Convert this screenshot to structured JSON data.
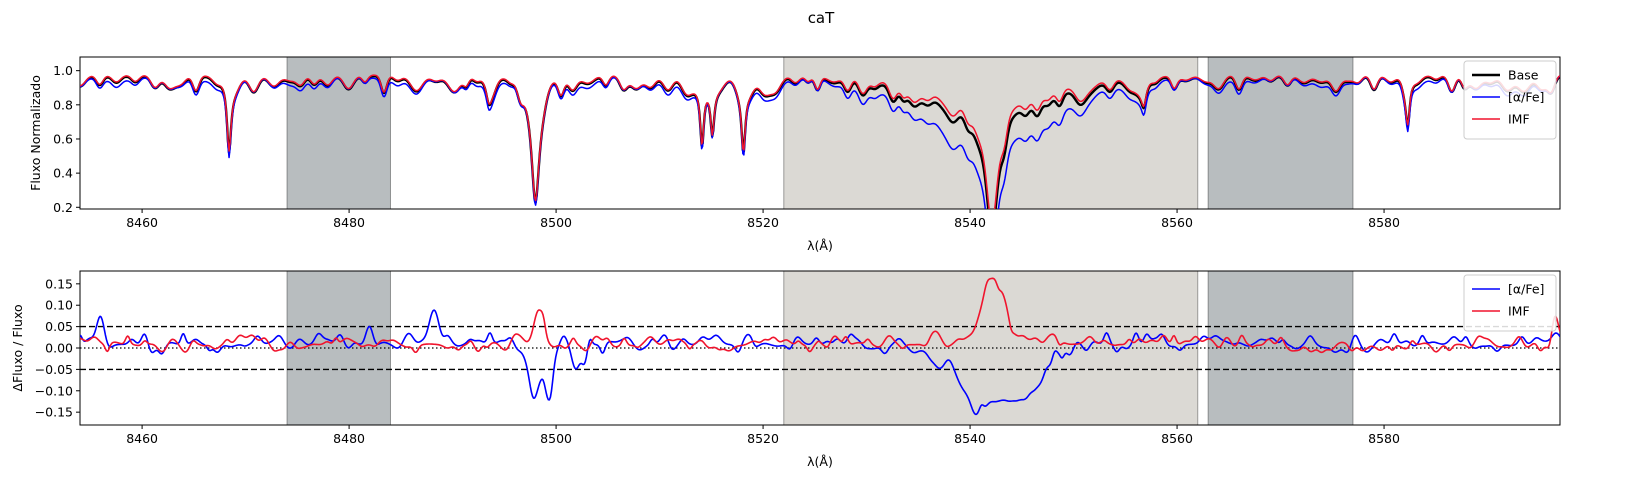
{
  "figure": {
    "title": "caT",
    "colors": {
      "Base": "#000000",
      "alpha_fe": "#0000ff",
      "IMF": "#f0142d",
      "side_band": "#7d868b",
      "central_band": "#bdbab0"
    }
  },
  "chart_data": [
    {
      "type": "line",
      "title": "",
      "xlabel": "λ(Å)",
      "ylabel": "Fluxo Normalizado",
      "xlim": [
        8454,
        8597
      ],
      "ylim": [
        0.19,
        1.08
      ],
      "xticks": [
        8460,
        8480,
        8500,
        8520,
        8540,
        8560,
        8580
      ],
      "xtick_labels": [
        "8460",
        "8480",
        "8500",
        "8520",
        "8540",
        "8560",
        "8580"
      ],
      "yticks": [
        0.2,
        0.4,
        0.6,
        0.8,
        1.0
      ],
      "ytick_labels": [
        "0.2",
        "0.4",
        "0.6",
        "0.8",
        "1.0"
      ],
      "legend": {
        "placement": "top-right",
        "entries": [
          {
            "label": "Base",
            "series": "Base"
          },
          {
            "label": "[α/Fe]",
            "series": "alpha_fe"
          },
          {
            "label": "IMF",
            "series": "IMF"
          }
        ]
      },
      "bands": [
        {
          "kind": "side",
          "x0": 8474,
          "x1": 8484
        },
        {
          "kind": "central",
          "x0": 8522,
          "x1": 8562
        },
        {
          "kind": "side",
          "x0": 8563,
          "x1": 8577
        }
      ],
      "continuum_level": 0.97,
      "absorption_lines": [
        {
          "center": 8468.4,
          "depth": 0.41,
          "width": 0.25
        },
        {
          "center": 8498.0,
          "depth": 0.63,
          "width": 0.45
        },
        {
          "center": 8542.1,
          "depth": 0.71,
          "width": 0.75
        },
        {
          "center": 8514.1,
          "depth": 0.35,
          "width": 0.22
        },
        {
          "center": 8515.1,
          "depth": 0.27,
          "width": 0.22
        },
        {
          "center": 8518.1,
          "depth": 0.35,
          "width": 0.22
        },
        {
          "center": 8582.3,
          "depth": 0.26,
          "width": 0.25
        },
        {
          "center": 8493.5,
          "depth": 0.1,
          "width": 0.35
        },
        {
          "center": 8556.8,
          "depth": 0.12,
          "width": 0.3
        }
      ],
      "wing_depression": {
        "center": 8542.0,
        "depth": 0.38,
        "width": 6.5
      },
      "series": [
        {
          "name": "Base",
          "key": "Base"
        },
        {
          "name": "[α/Fe]",
          "key": "alpha_fe"
        },
        {
          "name": "IMF",
          "key": "IMF"
        }
      ]
    },
    {
      "type": "line",
      "title": "",
      "xlabel": "λ(Å)",
      "ylabel": "ΔFluxo / Fluxo",
      "xlim": [
        8454,
        8597
      ],
      "ylim": [
        -0.18,
        0.18
      ],
      "xticks": [
        8460,
        8480,
        8500,
        8520,
        8540,
        8560,
        8580
      ],
      "xtick_labels": [
        "8460",
        "8480",
        "8500",
        "8520",
        "8540",
        "8560",
        "8580"
      ],
      "yticks": [
        0.15,
        0.1,
        0.05,
        0.0,
        -0.05,
        -0.1,
        -0.15
      ],
      "ytick_labels": [
        "0.15",
        "0.10",
        "0.05",
        "0.00",
        "−0.05",
        "−0.10",
        "−0.15"
      ],
      "hlines": [
        {
          "y": 0.05,
          "style": "dashed"
        },
        {
          "y": -0.05,
          "style": "dashed"
        },
        {
          "y": 0.0,
          "style": "dotted"
        }
      ],
      "legend": {
        "placement": "top-right",
        "entries": [
          {
            "label": "[α/Fe]",
            "series": "alpha_fe"
          },
          {
            "label": "IMF",
            "series": "IMF"
          }
        ]
      },
      "bands": [
        {
          "kind": "side",
          "x0": 8474,
          "x1": 8484
        },
        {
          "kind": "central",
          "x0": 8522,
          "x1": 8562
        },
        {
          "kind": "side",
          "x0": 8563,
          "x1": 8577
        }
      ],
      "features": {
        "alpha_fe": [
          {
            "center": 8488.2,
            "amp": 0.085,
            "width": 0.45
          },
          {
            "center": 8497.8,
            "amp": -0.135,
            "width": 0.55
          },
          {
            "center": 8499.2,
            "amp": -0.12,
            "width": 0.45
          },
          {
            "center": 8501.8,
            "amp": -0.06,
            "width": 0.4
          },
          {
            "center": 8502.6,
            "amp": -0.06,
            "width": 0.35
          },
          {
            "center": 8540.8,
            "amp": -0.14,
            "width": 1.6
          },
          {
            "center": 8544.5,
            "amp": -0.12,
            "width": 1.6
          },
          {
            "center": 8537.0,
            "amp": -0.05,
            "width": 1.0
          },
          {
            "center": 8547.0,
            "amp": -0.05,
            "width": 1.0
          },
          {
            "center": 8456.0,
            "amp": 0.05,
            "width": 0.35
          },
          {
            "center": 8482.0,
            "amp": 0.04,
            "width": 0.3
          }
        ],
        "IMF": [
          {
            "center": 8498.3,
            "amp": 0.08,
            "width": 0.45
          },
          {
            "center": 8541.8,
            "amp": 0.11,
            "width": 0.9
          },
          {
            "center": 8543.0,
            "amp": 0.09,
            "width": 0.8
          },
          {
            "center": 8536.5,
            "amp": 0.03,
            "width": 0.6
          },
          {
            "center": 8548.0,
            "amp": 0.03,
            "width": 0.6
          },
          {
            "center": 8596.5,
            "amp": 0.06,
            "width": 0.3
          }
        ]
      },
      "series": [
        {
          "name": "[α/Fe]",
          "key": "alpha_fe"
        },
        {
          "name": "IMF",
          "key": "IMF"
        }
      ]
    }
  ]
}
